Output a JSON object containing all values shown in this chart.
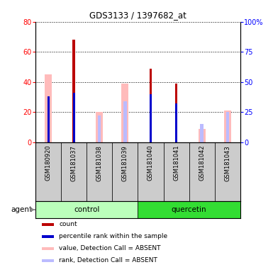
{
  "title": "GDS3133 / 1397682_at",
  "samples": [
    "GSM180920",
    "GSM181037",
    "GSM181038",
    "GSM181039",
    "GSM181040",
    "GSM181041",
    "GSM181042",
    "GSM181043"
  ],
  "groups": [
    {
      "name": "control",
      "indices": [
        0,
        1,
        2,
        3
      ],
      "color": "#bbffbb"
    },
    {
      "name": "quercetin",
      "indices": [
        4,
        5,
        6,
        7
      ],
      "color": "#33dd33"
    }
  ],
  "count": [
    0,
    68,
    0,
    0,
    49,
    39,
    0,
    0
  ],
  "rank": [
    38,
    41,
    0,
    0,
    40,
    32,
    0,
    0
  ],
  "value_absent": [
    45,
    0,
    20,
    39,
    0,
    0,
    9,
    21
  ],
  "rank_absent": [
    0,
    0,
    22,
    34,
    0,
    0,
    15,
    25
  ],
  "left_ylim": [
    0,
    80
  ],
  "right_ylim": [
    0,
    100
  ],
  "left_yticks": [
    0,
    20,
    40,
    60,
    80
  ],
  "right_yticks": [
    0,
    25,
    50,
    75,
    100
  ],
  "right_yticklabels": [
    "0",
    "25",
    "50",
    "75",
    "100%"
  ],
  "color_count": "#bb0000",
  "color_rank": "#0000cc",
  "color_value_absent": "#ffbbbb",
  "color_rank_absent": "#bbbbff",
  "legend": [
    {
      "label": "count",
      "color": "#bb0000"
    },
    {
      "label": "percentile rank within the sample",
      "color": "#0000cc"
    },
    {
      "label": "value, Detection Call = ABSENT",
      "color": "#ffbbbb"
    },
    {
      "label": "rank, Detection Call = ABSENT",
      "color": "#bbbbff"
    }
  ]
}
